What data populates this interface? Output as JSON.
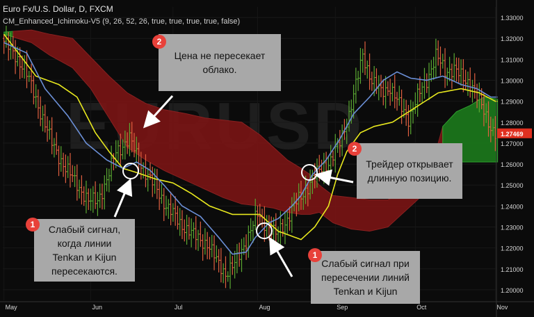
{
  "header": {
    "title": "Euro Fx/U.S. Dollar, D, FXCM",
    "indicator": "CM_Enhanced_Ichimoku-V5 (9, 26, 52, 26, true, true, true, true, false)"
  },
  "watermark": "EURUSD",
  "callouts": [
    {
      "badge": "2",
      "text": "Цена не пересекает\nоблако."
    },
    {
      "badge": "2",
      "text": "Трейдер открывает\nдлинную позицию."
    },
    {
      "badge": "1",
      "text": "Слабый сигнал,\nкогда линии\nTenkan и Kijun\nпересекаются."
    },
    {
      "badge": "1",
      "text": "Слабый сигнал при\nпересечении линий\nTenkan и Kijun"
    }
  ],
  "colors": {
    "background": "#0b0b0b",
    "bull_candle": "#5aa832",
    "bear_candle": "#e06040",
    "tenkan": "#6b8fd6",
    "kijun": "#e8e81e",
    "bear_cloud": "#7a1414",
    "bull_cloud": "#1c7a1c",
    "price_tag": "#e03020",
    "callout_bg": "#a8a8a8",
    "badge": "#e8413a"
  },
  "chart_data": {
    "type": "candlestick",
    "symbol": "Euro Fx/U.S. Dollar",
    "timeframe": "D",
    "x_tick_labels": [
      "May",
      "Jun",
      "Jul",
      "Aug",
      "Sep",
      "Oct",
      "Nov"
    ],
    "y_tick_labels": [
      "1.33000",
      "1.32000",
      "1.31000",
      "1.30000",
      "1.29000",
      "1.28000",
      "1.27000",
      "1.26000",
      "1.25000",
      "1.24000",
      "1.23000",
      "1.22000",
      "1.21000",
      "1.20000"
    ],
    "ylim": [
      1.195,
      1.335
    ],
    "last_price": "1.27469",
    "tenkan": [
      [
        0,
        1.318
      ],
      [
        10,
        1.313
      ],
      [
        18,
        1.296
      ],
      [
        28,
        1.283
      ],
      [
        36,
        1.27
      ],
      [
        45,
        1.262
      ],
      [
        52,
        1.258
      ],
      [
        58,
        1.261
      ],
      [
        64,
        1.257
      ],
      [
        70,
        1.25
      ],
      [
        78,
        1.24
      ],
      [
        86,
        1.235
      ],
      [
        94,
        1.225
      ],
      [
        100,
        1.217
      ],
      [
        106,
        1.218
      ],
      [
        110,
        1.225
      ],
      [
        116,
        1.232
      ],
      [
        120,
        1.234
      ],
      [
        126,
        1.24
      ],
      [
        130,
        1.245
      ],
      [
        135,
        1.255
      ],
      [
        141,
        1.262
      ],
      [
        147,
        1.272
      ],
      [
        153,
        1.284
      ],
      [
        160,
        1.292
      ],
      [
        166,
        1.3
      ],
      [
        172,
        1.304
      ],
      [
        178,
        1.301
      ],
      [
        185,
        1.3
      ],
      [
        192,
        1.302
      ],
      [
        200,
        1.298
      ],
      [
        207,
        1.296
      ],
      [
        213,
        1.292
      ]
    ],
    "kijun": [
      [
        0,
        1.322
      ],
      [
        14,
        1.302
      ],
      [
        24,
        1.298
      ],
      [
        32,
        1.292
      ],
      [
        40,
        1.275
      ],
      [
        46,
        1.266
      ],
      [
        52,
        1.258
      ],
      [
        58,
        1.256
      ],
      [
        66,
        1.253
      ],
      [
        74,
        1.251
      ],
      [
        82,
        1.246
      ],
      [
        90,
        1.24
      ],
      [
        100,
        1.236
      ],
      [
        112,
        1.236
      ],
      [
        120,
        1.228
      ],
      [
        130,
        1.224
      ],
      [
        136,
        1.23
      ],
      [
        142,
        1.24
      ],
      [
        146,
        1.255
      ],
      [
        150,
        1.266
      ],
      [
        156,
        1.275
      ],
      [
        162,
        1.278
      ],
      [
        170,
        1.28
      ],
      [
        180,
        1.287
      ],
      [
        190,
        1.294
      ],
      [
        200,
        1.296
      ],
      [
        208,
        1.294
      ],
      [
        215,
        1.29
      ]
    ],
    "cloud_top": [
      [
        0,
        1.323
      ],
      [
        12,
        1.324
      ],
      [
        20,
        1.322
      ],
      [
        30,
        1.32
      ],
      [
        38,
        1.311
      ],
      [
        46,
        1.302
      ],
      [
        54,
        1.294
      ],
      [
        62,
        1.289
      ],
      [
        70,
        1.286
      ],
      [
        80,
        1.284
      ],
      [
        88,
        1.282
      ],
      [
        96,
        1.281
      ],
      [
        104,
        1.28
      ],
      [
        112,
        1.274
      ],
      [
        118,
        1.268
      ],
      [
        124,
        1.262
      ],
      [
        130,
        1.258
      ],
      [
        134,
        1.255
      ],
      [
        138,
        1.25
      ],
      [
        144,
        1.245
      ],
      [
        152,
        1.244
      ],
      [
        160,
        1.243
      ],
      [
        168,
        1.243
      ],
      [
        176,
        1.247
      ],
      [
        182,
        1.25
      ],
      [
        188,
        1.262
      ],
      [
        192,
        1.278
      ],
      [
        198,
        1.285
      ],
      [
        204,
        1.288
      ],
      [
        210,
        1.292
      ],
      [
        216,
        1.291
      ]
    ],
    "cloud_bottom": [
      [
        0,
        1.322
      ],
      [
        12,
        1.318
      ],
      [
        20,
        1.312
      ],
      [
        30,
        1.306
      ],
      [
        38,
        1.296
      ],
      [
        46,
        1.282
      ],
      [
        54,
        1.268
      ],
      [
        62,
        1.262
      ],
      [
        70,
        1.257
      ],
      [
        80,
        1.252
      ],
      [
        88,
        1.248
      ],
      [
        96,
        1.244
      ],
      [
        104,
        1.241
      ],
      [
        112,
        1.24
      ],
      [
        118,
        1.239
      ],
      [
        124,
        1.237
      ],
      [
        130,
        1.236
      ],
      [
        134,
        1.236
      ],
      [
        138,
        1.237
      ],
      [
        144,
        1.232
      ],
      [
        152,
        1.229
      ],
      [
        160,
        1.228
      ],
      [
        168,
        1.23
      ],
      [
        176,
        1.238
      ],
      [
        182,
        1.244
      ],
      [
        188,
        1.252
      ],
      [
        192,
        1.258
      ],
      [
        198,
        1.261
      ],
      [
        204,
        1.261
      ],
      [
        210,
        1.261
      ],
      [
        216,
        1.261
      ]
    ],
    "price_path": [
      [
        0,
        1.32
      ],
      [
        10,
        1.306
      ],
      [
        16,
        1.288
      ],
      [
        22,
        1.27
      ],
      [
        28,
        1.258
      ],
      [
        34,
        1.249
      ],
      [
        38,
        1.242
      ],
      [
        42,
        1.243
      ],
      [
        46,
        1.252
      ],
      [
        50,
        1.266
      ],
      [
        56,
        1.272
      ],
      [
        60,
        1.262
      ],
      [
        64,
        1.254
      ],
      [
        68,
        1.248
      ],
      [
        72,
        1.24
      ],
      [
        78,
        1.232
      ],
      [
        84,
        1.226
      ],
      [
        90,
        1.222
      ],
      [
        94,
        1.214
      ],
      [
        98,
        1.208
      ],
      [
        102,
        1.212
      ],
      [
        108,
        1.226
      ],
      [
        112,
        1.236
      ],
      [
        116,
        1.231
      ],
      [
        120,
        1.226
      ],
      [
        124,
        1.232
      ],
      [
        128,
        1.24
      ],
      [
        132,
        1.246
      ],
      [
        136,
        1.253
      ],
      [
        140,
        1.258
      ],
      [
        144,
        1.262
      ],
      [
        148,
        1.27
      ],
      [
        152,
        1.284
      ],
      [
        156,
        1.302
      ],
      [
        158,
        1.312
      ],
      [
        162,
        1.3
      ],
      [
        166,
        1.294
      ],
      [
        170,
        1.297
      ],
      [
        174,
        1.288
      ],
      [
        178,
        1.282
      ],
      [
        182,
        1.292
      ],
      [
        186,
        1.3
      ],
      [
        190,
        1.312
      ],
      [
        194,
        1.304
      ],
      [
        198,
        1.306
      ],
      [
        202,
        1.3
      ],
      [
        206,
        1.298
      ],
      [
        210,
        1.287
      ],
      [
        214,
        1.278
      ],
      [
        216,
        1.275
      ]
    ]
  }
}
